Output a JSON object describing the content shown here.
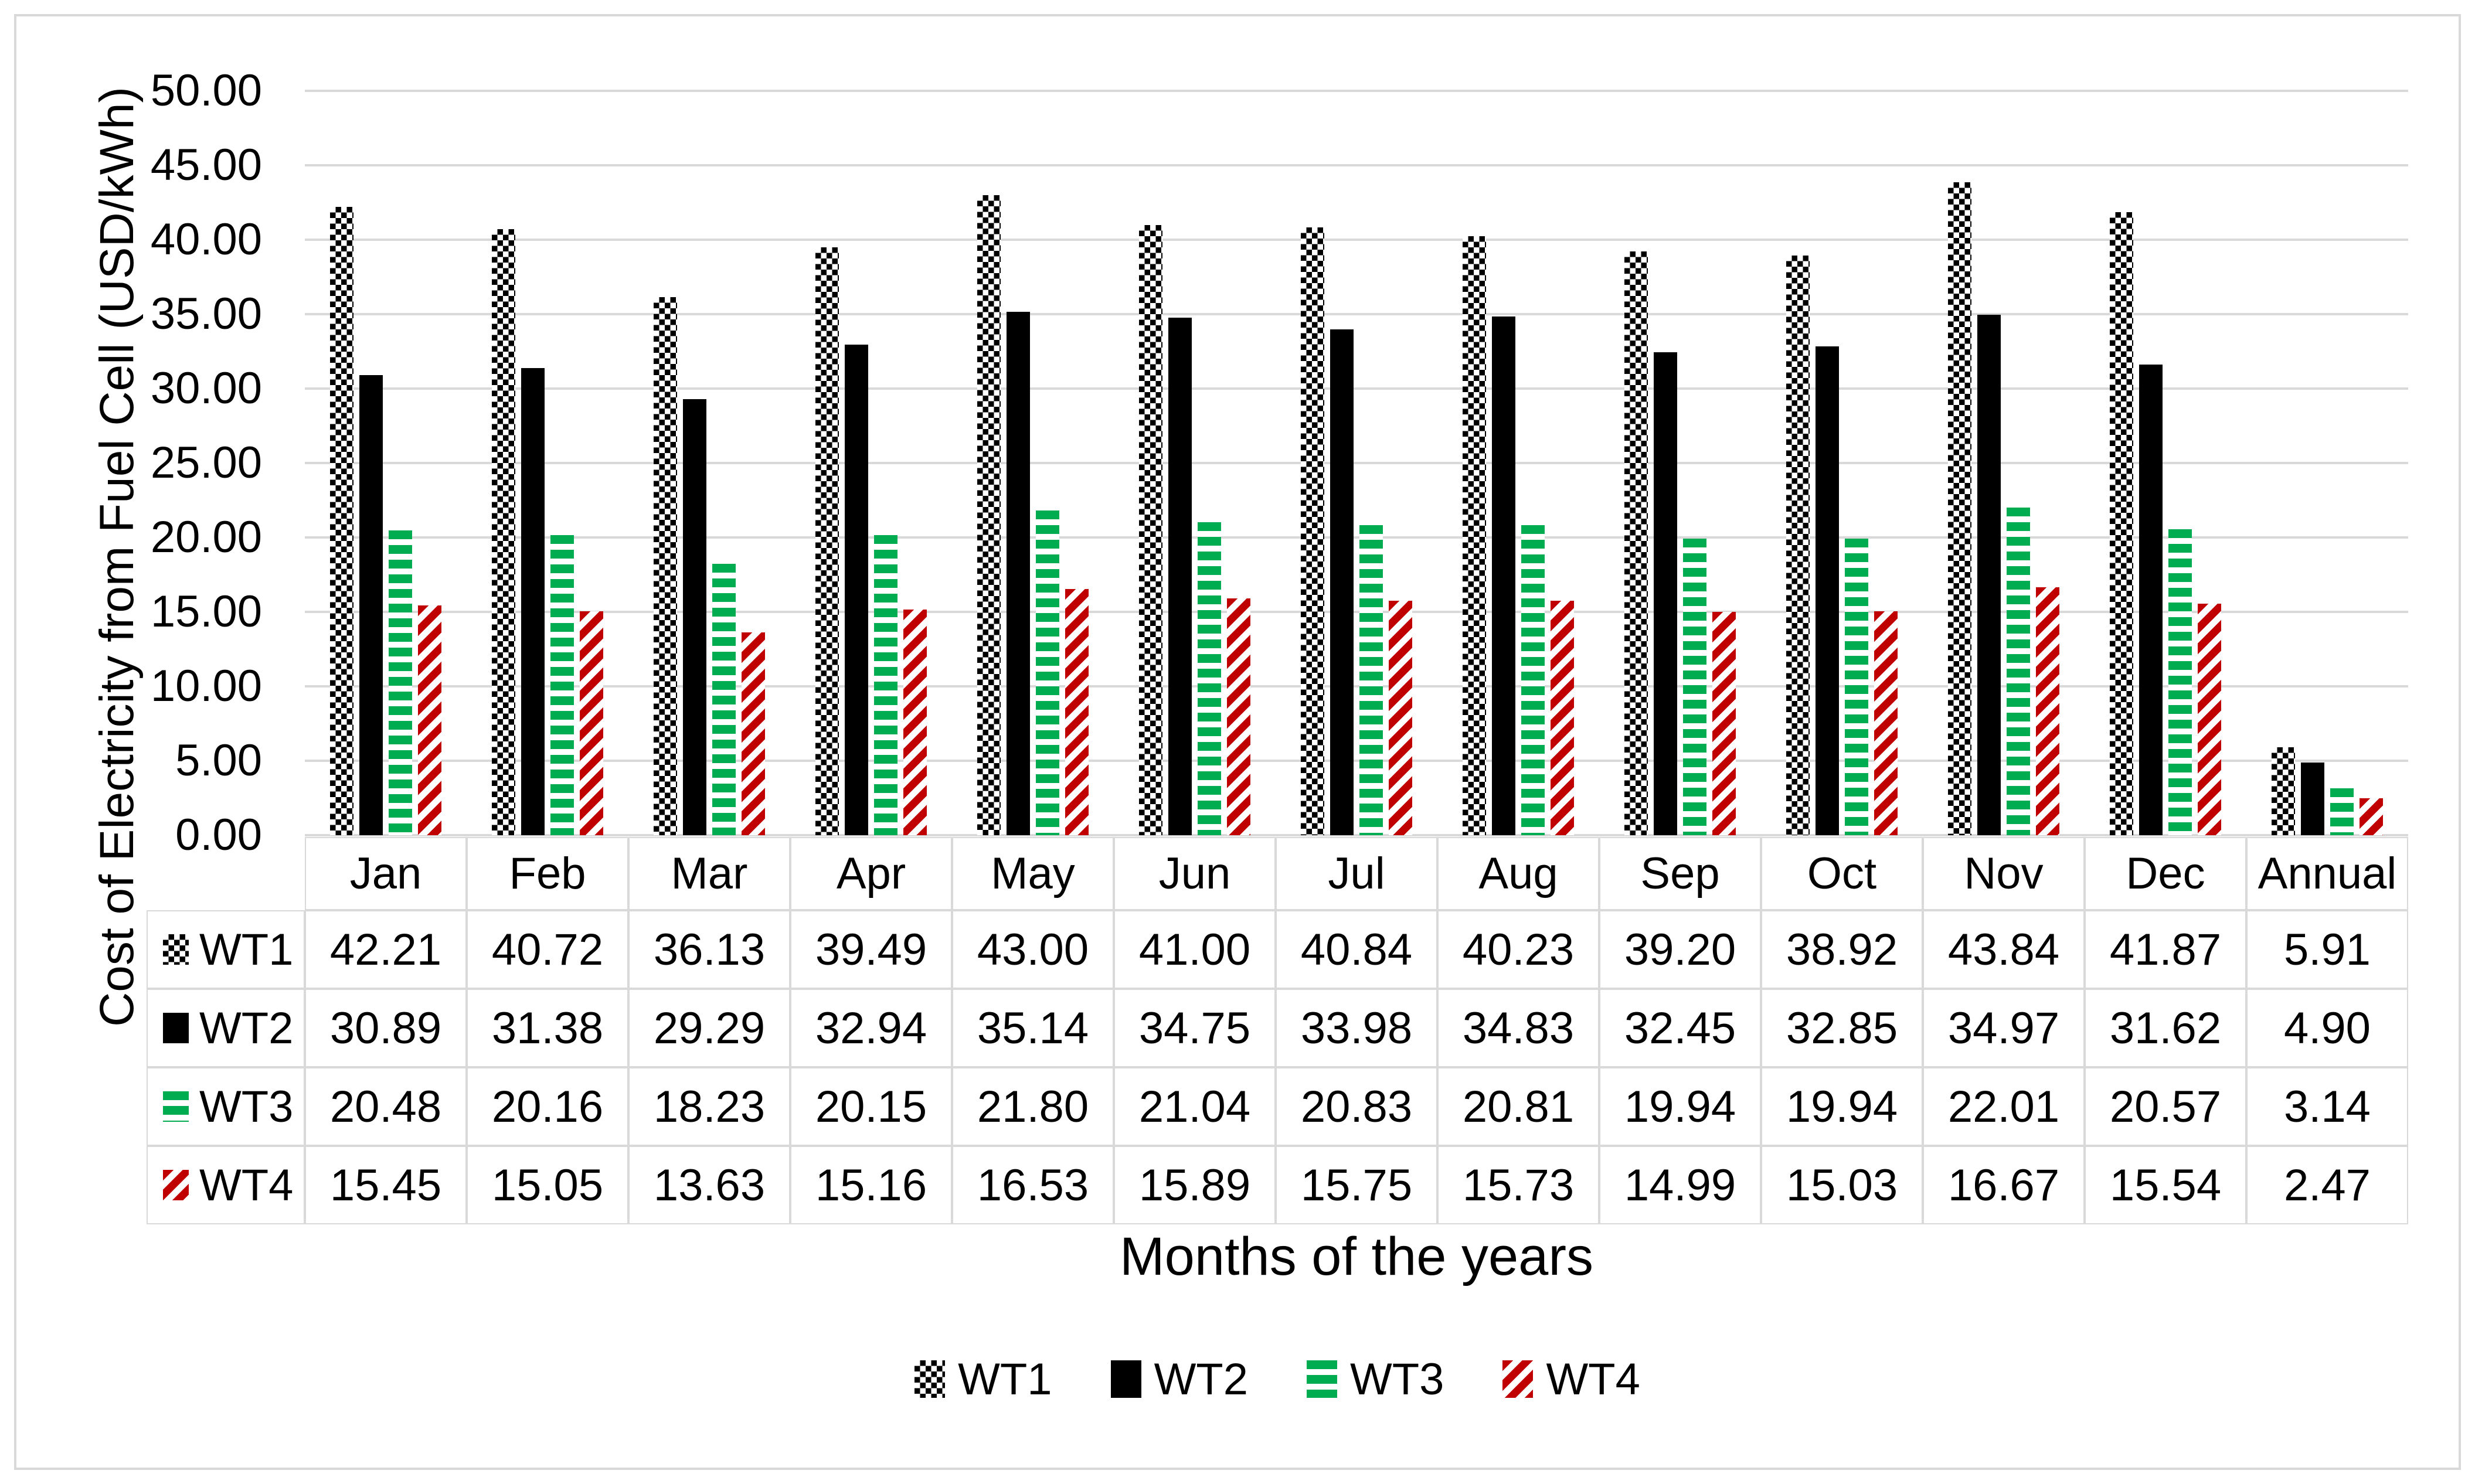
{
  "chart_data": {
    "type": "bar",
    "title": "",
    "xlabel": "Months of the years",
    "ylabel": "Cost of Electricity from Fuel Cell (USD/kWh)",
    "ylim": [
      0,
      50
    ],
    "ytick_step": 5,
    "ytick_labels": [
      "0.00",
      "5.00",
      "10.00",
      "15.00",
      "20.00",
      "25.00",
      "30.00",
      "35.00",
      "40.00",
      "45.00",
      "50.00"
    ],
    "grid": true,
    "legend_position": "bottom",
    "data_table_shown": true,
    "categories": [
      "Jan",
      "Feb",
      "Mar",
      "Apr",
      "May",
      "Jun",
      "Jul",
      "Aug",
      "Sep",
      "Oct",
      "Nov",
      "Dec",
      "Annual"
    ],
    "series": [
      {
        "name": "WT1",
        "pattern": "checkerboard",
        "color": "#000000",
        "values": [
          42.21,
          40.72,
          36.13,
          39.49,
          43.0,
          41.0,
          40.84,
          40.23,
          39.2,
          38.92,
          43.84,
          41.87,
          5.91
        ]
      },
      {
        "name": "WT2",
        "pattern": "solid",
        "color": "#000000",
        "values": [
          30.89,
          31.38,
          29.29,
          32.94,
          35.14,
          34.75,
          33.98,
          34.83,
          32.45,
          32.85,
          34.97,
          31.62,
          4.9
        ]
      },
      {
        "name": "WT3",
        "pattern": "horizontal-stripes",
        "color": "#00AC50",
        "values": [
          20.48,
          20.16,
          18.23,
          20.15,
          21.8,
          21.04,
          20.83,
          20.81,
          19.94,
          19.94,
          22.01,
          20.57,
          3.14
        ]
      },
      {
        "name": "WT4",
        "pattern": "diagonal-stripes-up",
        "color": "#C00000",
        "values": [
          15.45,
          15.05,
          13.63,
          15.16,
          16.53,
          15.89,
          15.75,
          15.73,
          14.99,
          15.03,
          16.67,
          15.54,
          2.47
        ]
      }
    ]
  },
  "colors": {
    "gridline": "#D9D9D9",
    "table_border": "#D9D9D9",
    "page_border": "#D9D9D9",
    "text": "#000000"
  }
}
